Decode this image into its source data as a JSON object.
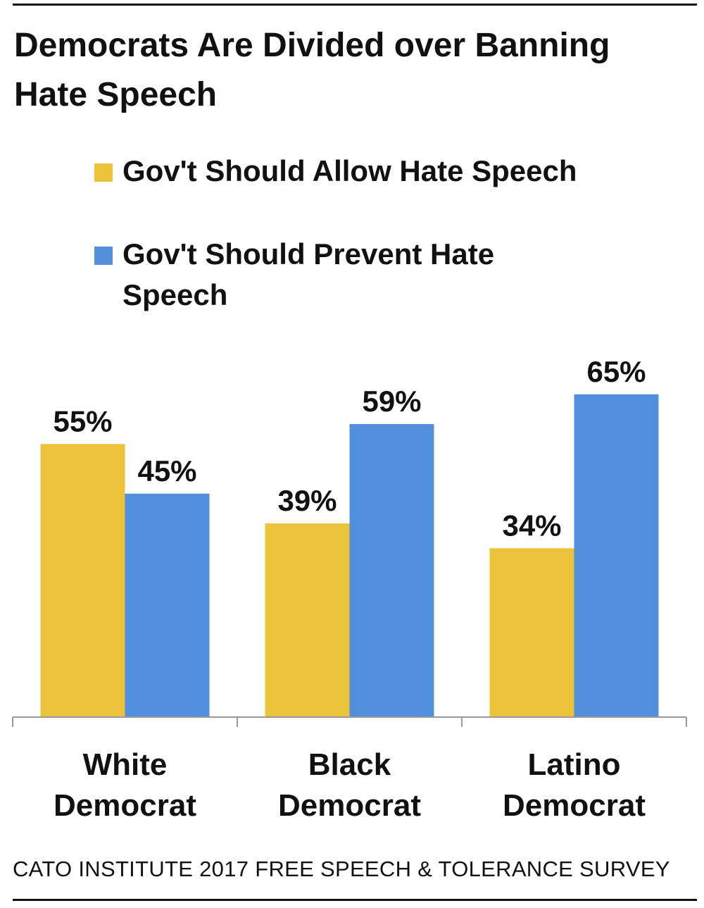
{
  "chart_data": {
    "type": "bar",
    "title": "Democrats Are Divided over Banning Hate Speech",
    "categories": [
      "White Democrat",
      "Black Democrat",
      "Latino Democrat"
    ],
    "category_lines": [
      [
        "White",
        "Democrat"
      ],
      [
        "Black",
        "Democrat"
      ],
      [
        "Latino",
        "Democrat"
      ]
    ],
    "series": [
      {
        "name": "Gov't Should Allow Hate Speech",
        "values": [
          55,
          39,
          34
        ],
        "color": "#EBC33A"
      },
      {
        "name": "Gov't Should Prevent Hate Speech",
        "values": [
          45,
          59,
          65
        ],
        "color": "#528FDD"
      }
    ],
    "data_labels": [
      [
        "55%",
        "39%",
        "34%"
      ],
      [
        "45%",
        "59%",
        "65%"
      ]
    ],
    "legend_placement": "top",
    "grid": false,
    "xlabel": "",
    "ylabel": ""
  },
  "legend": {
    "allow_label": "Gov't Should Allow Hate Speech",
    "prevent_label": "Gov't Should Prevent Hate Speech"
  },
  "footer": "CATO INSTITUTE 2017 FREE SPEECH & TOLERANCE SURVEY"
}
